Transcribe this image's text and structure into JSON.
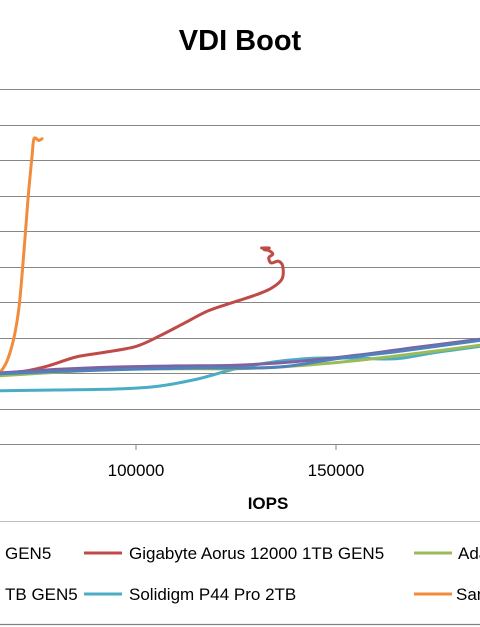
{
  "chart_data": {
    "type": "line",
    "title": "VDI Boot",
    "xlabel": "IOPS",
    "ylabel": "",
    "xlim": [
      66000,
      186000
    ],
    "ylim": [
      0,
      10
    ],
    "x_ticks": [
      {
        "value": 100000,
        "label": "100000"
      },
      {
        "value": 150000,
        "label": "150000"
      }
    ],
    "grid": "horizontal",
    "legend_position": "bottom",
    "legend_labels": [
      "GEN5",
      "Gigabyte Aorus 12000 1TB GEN5",
      "Ada",
      "TB GEN5",
      "Solidigm P44 Pro 2TB",
      "Sam"
    ],
    "series": [
      {
        "color": "#be4b48",
        "points": [
          [
            66000,
            2.0
          ],
          [
            72000,
            2.05
          ],
          [
            78000,
            2.2
          ],
          [
            85000,
            2.45
          ],
          [
            92000,
            2.58
          ],
          [
            100000,
            2.75
          ],
          [
            106000,
            3.05
          ],
          [
            112000,
            3.4
          ],
          [
            118000,
            3.75
          ],
          [
            124000,
            3.98
          ],
          [
            130000,
            4.2
          ],
          [
            134000,
            4.4
          ],
          [
            136500,
            4.65
          ],
          [
            136700,
            5.0
          ],
          [
            135600,
            5.15
          ],
          [
            133800,
            5.1
          ],
          [
            133200,
            5.25
          ],
          [
            134200,
            5.35
          ],
          [
            133200,
            5.45
          ],
          [
            132000,
            5.48
          ],
          [
            133300,
            5.52
          ],
          [
            131400,
            5.52
          ]
        ]
      },
      {
        "color": "#f08c3c",
        "points": [
          [
            66000,
            2.0
          ],
          [
            67800,
            2.35
          ],
          [
            69500,
            3.0
          ],
          [
            70800,
            3.9
          ],
          [
            71900,
            5.3
          ],
          [
            73000,
            6.9
          ],
          [
            74000,
            8.1
          ],
          [
            74500,
            8.6
          ],
          [
            75700,
            8.55
          ],
          [
            76500,
            8.6
          ]
        ]
      },
      {
        "color": "#4bacc6",
        "points": [
          [
            66000,
            1.5
          ],
          [
            80000,
            1.52
          ],
          [
            95000,
            1.55
          ],
          [
            105000,
            1.62
          ],
          [
            115000,
            1.82
          ],
          [
            125000,
            2.12
          ],
          [
            135000,
            2.32
          ],
          [
            145000,
            2.42
          ],
          [
            155000,
            2.42
          ],
          [
            165000,
            2.4
          ],
          [
            175000,
            2.58
          ],
          [
            186000,
            2.75
          ]
        ]
      },
      {
        "color": "#9bbb59",
        "points": [
          [
            66000,
            1.92
          ],
          [
            80000,
            2.02
          ],
          [
            95000,
            2.1
          ],
          [
            110000,
            2.12
          ],
          [
            125000,
            2.12
          ],
          [
            140000,
            2.2
          ],
          [
            155000,
            2.35
          ],
          [
            170000,
            2.55
          ],
          [
            186000,
            2.78
          ]
        ]
      },
      {
        "color": "#7e62a1",
        "points": [
          [
            66000,
            2.0
          ],
          [
            80000,
            2.1
          ],
          [
            95000,
            2.17
          ],
          [
            110000,
            2.2
          ],
          [
            125000,
            2.22
          ],
          [
            140000,
            2.32
          ],
          [
            155000,
            2.5
          ],
          [
            170000,
            2.72
          ],
          [
            186000,
            2.95
          ]
        ]
      },
      {
        "color": "#4f81bd",
        "points": [
          [
            66000,
            1.98
          ],
          [
            90000,
            2.08
          ],
          [
            115000,
            2.14
          ],
          [
            135000,
            2.16
          ],
          [
            150000,
            2.4
          ],
          [
            165000,
            2.6
          ],
          [
            175000,
            2.75
          ],
          [
            186000,
            2.92
          ]
        ]
      }
    ]
  }
}
